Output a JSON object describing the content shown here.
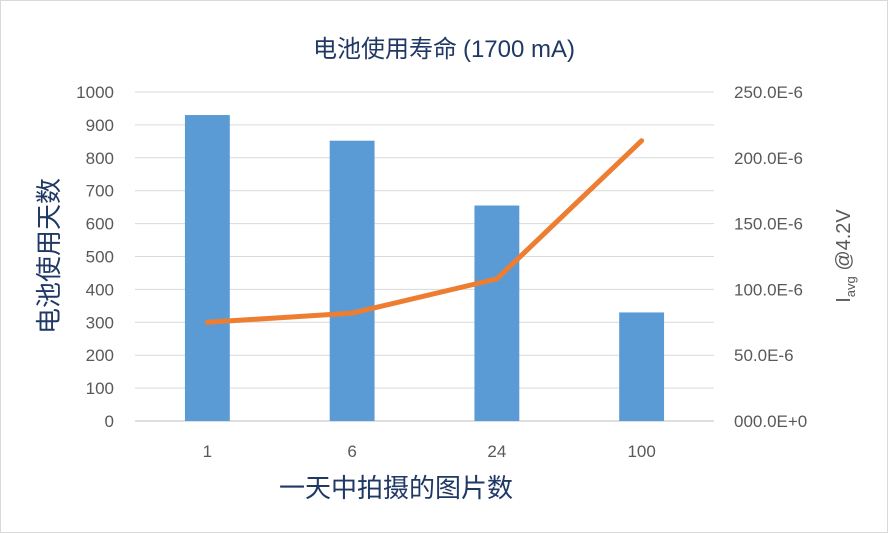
{
  "chart_data": {
    "type": "bar",
    "title_main": "电池使用寿命",
    "title_suffix": "(1700 mA)",
    "xlabel": "一天中拍摄的图片数",
    "ylabel": "电池使用天数",
    "y2label_base": "I",
    "y2label_sub": "avg",
    "y2label_rest": " @4.2V",
    "categories": [
      "1",
      "6",
      "24",
      "100"
    ],
    "ylim": [
      0,
      1000
    ],
    "yticks": [
      "0",
      "100",
      "200",
      "300",
      "400",
      "500",
      "600",
      "700",
      "800",
      "900",
      "1000"
    ],
    "y2lim": [
      0,
      0.00025
    ],
    "y2ticks": [
      "000.0E+0",
      "50.0E-6",
      "100.0E-6",
      "150.0E-6",
      "200.0E-6",
      "250.0E-6"
    ],
    "grid": true,
    "series": [
      {
        "type": "bar",
        "axis": "left",
        "values": [
          930,
          852,
          655,
          330
        ]
      },
      {
        "type": "line",
        "axis": "right",
        "values": [
          7.5e-05,
          8.2e-05,
          0.000108,
          0.000213
        ]
      }
    ],
    "colors": {
      "bar": "#5b9bd5",
      "line": "#ed7d31",
      "grid": "#d9d9d9",
      "axis": "#bfbfbf",
      "title": "#1f3864"
    }
  }
}
